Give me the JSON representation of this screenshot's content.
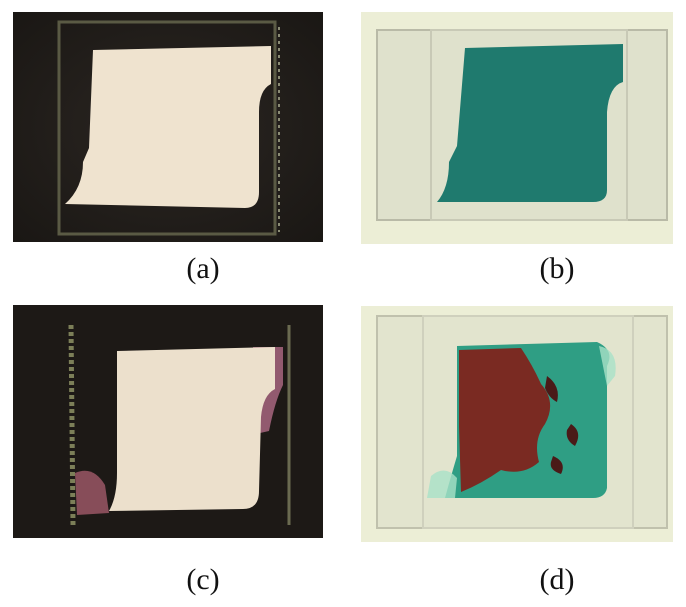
{
  "figure": {
    "panels": [
      {
        "caption": "(a)",
        "background": "dark",
        "film_color": "#efe3cf"
      },
      {
        "caption": "(b)",
        "background": "light",
        "film_color": "#1f7a6e"
      },
      {
        "caption": "(c)",
        "background": "dark",
        "film_color": "#ece0cc"
      },
      {
        "caption": "(d)",
        "background": "light",
        "film_color": "#2f9e84"
      }
    ]
  }
}
